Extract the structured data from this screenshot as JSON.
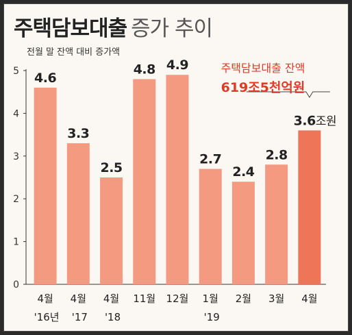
{
  "title": {
    "main": "주택담보대출",
    "sub": "증가 추이"
  },
  "callout": {
    "line1": "주택담보대출 잔액",
    "line2": "619조5천억원"
  },
  "colors": {
    "bar": "#f49a80",
    "bar_highlight": "#ef7559",
    "axis": "#333333",
    "callout": "#e03b26"
  },
  "chart_data": {
    "type": "bar",
    "ylabel": "전월 말 잔액 대비 증가액",
    "ylim": [
      0,
      5
    ],
    "yticks": [
      0,
      1,
      2,
      3,
      4,
      5
    ],
    "categories": [
      [
        "4월",
        "'16년"
      ],
      [
        "4월",
        "'17"
      ],
      [
        "4월",
        "'18"
      ],
      [
        "11월",
        ""
      ],
      [
        "12월",
        ""
      ],
      [
        "1월",
        "'19"
      ],
      [
        "2월",
        ""
      ],
      [
        "3월",
        ""
      ],
      [
        "4월",
        ""
      ]
    ],
    "values": [
      4.6,
      3.3,
      2.5,
      4.8,
      4.9,
      2.7,
      2.4,
      2.8,
      3.6
    ],
    "value_labels": [
      "4.6",
      "3.3",
      "2.5",
      "4.8",
      "4.9",
      "2.7",
      "2.4",
      "2.8",
      "3.6"
    ],
    "last_value_unit": "조원",
    "highlight_index": 8
  }
}
